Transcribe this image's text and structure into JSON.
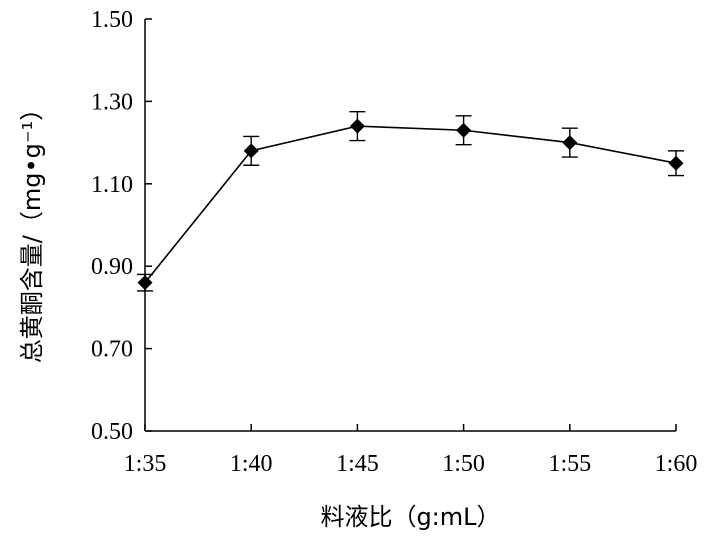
{
  "chart_data": {
    "type": "line",
    "categories": [
      "1:35",
      "1:40",
      "1:45",
      "1:50",
      "1:55",
      "1:60"
    ],
    "series": [
      {
        "values": [
          0.86,
          1.18,
          1.24,
          1.23,
          1.2,
          1.15
        ],
        "error": [
          0.02,
          0.035,
          0.035,
          0.035,
          0.035,
          0.03
        ]
      }
    ],
    "xlabel": "料液比（g:mL）",
    "ylabel": "总黄酮含量/（mg•g⁻¹）",
    "ylim": [
      0.5,
      1.5
    ],
    "yticks": [
      "0.50",
      "0.70",
      "0.90",
      "1.10",
      "1.30",
      "1.50"
    ],
    "ytick_values": [
      0.5,
      0.7,
      0.9,
      1.1,
      1.3,
      1.5
    ],
    "grid": false,
    "legend": "none",
    "marker": "diamond",
    "line_color": "#000000"
  }
}
